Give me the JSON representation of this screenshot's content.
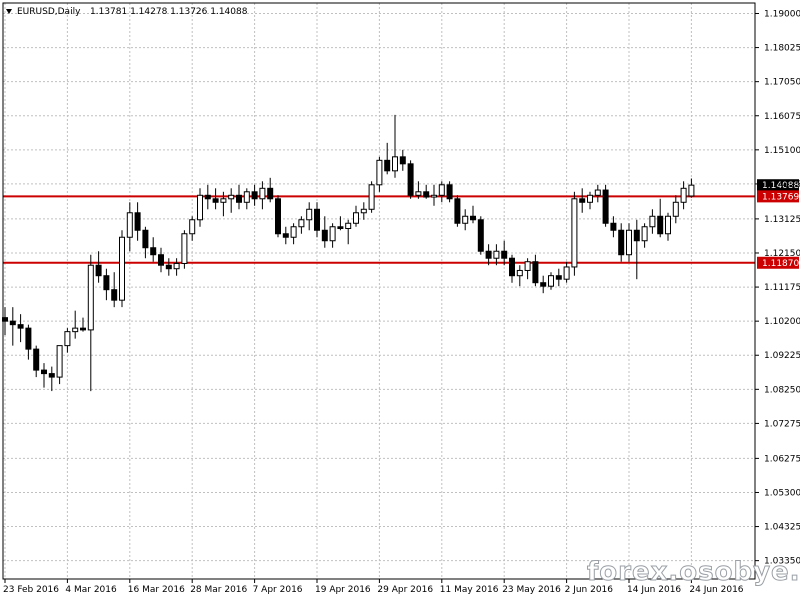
{
  "header": {
    "symbol": "EURUSD,Daily",
    "ohlc": "1.13781 1.14278 1.13726 1.14088"
  },
  "watermark": "forex.osobye.ru",
  "colors": {
    "background": "#ffffff",
    "grid": "#c0c0c0",
    "candle": "#000000",
    "level_line": "#cc0000",
    "current_price_tag": "#000000"
  },
  "chart_data": {
    "type": "candlestick",
    "title": "EURUSD,Daily",
    "grid": true,
    "ylim": [
      1.02825,
      1.193
    ],
    "y_ticks": [
      "1.19000",
      "1.18025",
      "1.17050",
      "1.16075",
      "1.15100",
      "1.14125",
      "1.13125",
      "1.12150",
      "1.11175",
      "1.10200",
      "1.09225",
      "1.08250",
      "1.07275",
      "1.06275",
      "1.05300",
      "1.04325",
      "1.03350"
    ],
    "x_ticks": [
      {
        "index": 0,
        "label": "23 Feb 2016"
      },
      {
        "index": 8,
        "label": "4 Mar 2016"
      },
      {
        "index": 16,
        "label": "16 Mar 2016"
      },
      {
        "index": 24,
        "label": "28 Mar 2016"
      },
      {
        "index": 32,
        "label": "7 Apr 2016"
      },
      {
        "index": 40,
        "label": "19 Apr 2016"
      },
      {
        "index": 48,
        "label": "29 Apr 2016"
      },
      {
        "index": 56,
        "label": "11 May 2016"
      },
      {
        "index": 64,
        "label": "23 May 2016"
      },
      {
        "index": 72,
        "label": "2 Jun 2016"
      },
      {
        "index": 80,
        "label": "14 Jun 2016"
      },
      {
        "index": 88,
        "label": "24 Jun 2016"
      }
    ],
    "levels": [
      {
        "value": 1.13769,
        "label": "1.13769"
      },
      {
        "value": 1.1187,
        "label": "1.11870"
      }
    ],
    "current_price": {
      "value": 1.14088,
      "label": "1.14088"
    },
    "candles": [
      {
        "o": 1.103,
        "h": 1.106,
        "l": 1.098,
        "c": 1.102
      },
      {
        "o": 1.102,
        "h": 1.106,
        "l": 1.095,
        "c": 1.101
      },
      {
        "o": 1.101,
        "h": 1.104,
        "l": 1.096,
        "c": 1.1
      },
      {
        "o": 1.1,
        "h": 1.101,
        "l": 1.091,
        "c": 1.094
      },
      {
        "o": 1.094,
        "h": 1.095,
        "l": 1.086,
        "c": 1.088
      },
      {
        "o": 1.088,
        "h": 1.09,
        "l": 1.083,
        "c": 1.087
      },
      {
        "o": 1.087,
        "h": 1.089,
        "l": 1.082,
        "c": 1.086
      },
      {
        "o": 1.086,
        "h": 1.095,
        "l": 1.084,
        "c": 1.095
      },
      {
        "o": 1.095,
        "h": 1.1,
        "l": 1.093,
        "c": 1.099
      },
      {
        "o": 1.099,
        "h": 1.105,
        "l": 1.097,
        "c": 1.1
      },
      {
        "o": 1.1,
        "h": 1.103,
        "l": 1.099,
        "c": 1.0995
      },
      {
        "o": 1.0995,
        "h": 1.121,
        "l": 1.082,
        "c": 1.118
      },
      {
        "o": 1.118,
        "h": 1.122,
        "l": 1.113,
        "c": 1.115
      },
      {
        "o": 1.115,
        "h": 1.117,
        "l": 1.108,
        "c": 1.111
      },
      {
        "o": 1.111,
        "h": 1.116,
        "l": 1.106,
        "c": 1.108
      },
      {
        "o": 1.108,
        "h": 1.128,
        "l": 1.106,
        "c": 1.126
      },
      {
        "o": 1.126,
        "h": 1.136,
        "l": 1.122,
        "c": 1.133
      },
      {
        "o": 1.133,
        "h": 1.136,
        "l": 1.125,
        "c": 1.128
      },
      {
        "o": 1.128,
        "h": 1.129,
        "l": 1.12,
        "c": 1.123
      },
      {
        "o": 1.123,
        "h": 1.126,
        "l": 1.119,
        "c": 1.121
      },
      {
        "o": 1.121,
        "h": 1.123,
        "l": 1.116,
        "c": 1.118
      },
      {
        "o": 1.118,
        "h": 1.12,
        "l": 1.115,
        "c": 1.117
      },
      {
        "o": 1.117,
        "h": 1.12,
        "l": 1.115,
        "c": 1.1185
      },
      {
        "o": 1.1185,
        "h": 1.128,
        "l": 1.117,
        "c": 1.127
      },
      {
        "o": 1.127,
        "h": 1.132,
        "l": 1.125,
        "c": 1.131
      },
      {
        "o": 1.131,
        "h": 1.14,
        "l": 1.129,
        "c": 1.138
      },
      {
        "o": 1.138,
        "h": 1.141,
        "l": 1.134,
        "c": 1.137
      },
      {
        "o": 1.137,
        "h": 1.14,
        "l": 1.134,
        "c": 1.136
      },
      {
        "o": 1.136,
        "h": 1.139,
        "l": 1.132,
        "c": 1.137
      },
      {
        "o": 1.137,
        "h": 1.14,
        "l": 1.133,
        "c": 1.138
      },
      {
        "o": 1.138,
        "h": 1.141,
        "l": 1.134,
        "c": 1.136
      },
      {
        "o": 1.136,
        "h": 1.14,
        "l": 1.134,
        "c": 1.139
      },
      {
        "o": 1.139,
        "h": 1.141,
        "l": 1.135,
        "c": 1.137
      },
      {
        "o": 1.137,
        "h": 1.142,
        "l": 1.134,
        "c": 1.14
      },
      {
        "o": 1.14,
        "h": 1.143,
        "l": 1.136,
        "c": 1.137
      },
      {
        "o": 1.137,
        "h": 1.138,
        "l": 1.126,
        "c": 1.127
      },
      {
        "o": 1.127,
        "h": 1.129,
        "l": 1.124,
        "c": 1.126
      },
      {
        "o": 1.126,
        "h": 1.13,
        "l": 1.124,
        "c": 1.129
      },
      {
        "o": 1.129,
        "h": 1.132,
        "l": 1.127,
        "c": 1.131
      },
      {
        "o": 1.131,
        "h": 1.136,
        "l": 1.128,
        "c": 1.134
      },
      {
        "o": 1.134,
        "h": 1.136,
        "l": 1.126,
        "c": 1.128
      },
      {
        "o": 1.128,
        "h": 1.132,
        "l": 1.123,
        "c": 1.125
      },
      {
        "o": 1.125,
        "h": 1.13,
        "l": 1.123,
        "c": 1.129
      },
      {
        "o": 1.129,
        "h": 1.132,
        "l": 1.128,
        "c": 1.1285
      },
      {
        "o": 1.1285,
        "h": 1.131,
        "l": 1.124,
        "c": 1.13
      },
      {
        "o": 1.13,
        "h": 1.135,
        "l": 1.129,
        "c": 1.133
      },
      {
        "o": 1.133,
        "h": 1.136,
        "l": 1.131,
        "c": 1.134
      },
      {
        "o": 1.134,
        "h": 1.142,
        "l": 1.133,
        "c": 1.141
      },
      {
        "o": 1.141,
        "h": 1.149,
        "l": 1.139,
        "c": 1.148
      },
      {
        "o": 1.148,
        "h": 1.153,
        "l": 1.144,
        "c": 1.145
      },
      {
        "o": 1.145,
        "h": 1.161,
        "l": 1.143,
        "c": 1.149
      },
      {
        "o": 1.149,
        "h": 1.151,
        "l": 1.145,
        "c": 1.147
      },
      {
        "o": 1.147,
        "h": 1.148,
        "l": 1.137,
        "c": 1.138
      },
      {
        "o": 1.138,
        "h": 1.142,
        "l": 1.137,
        "c": 1.139
      },
      {
        "o": 1.139,
        "h": 1.141,
        "l": 1.137,
        "c": 1.1375
      },
      {
        "o": 1.1375,
        "h": 1.141,
        "l": 1.135,
        "c": 1.138
      },
      {
        "o": 1.138,
        "h": 1.142,
        "l": 1.136,
        "c": 1.141
      },
      {
        "o": 1.141,
        "h": 1.142,
        "l": 1.136,
        "c": 1.137
      },
      {
        "o": 1.137,
        "h": 1.138,
        "l": 1.129,
        "c": 1.13
      },
      {
        "o": 1.13,
        "h": 1.134,
        "l": 1.128,
        "c": 1.132
      },
      {
        "o": 1.132,
        "h": 1.135,
        "l": 1.13,
        "c": 1.131
      },
      {
        "o": 1.131,
        "h": 1.132,
        "l": 1.121,
        "c": 1.122
      },
      {
        "o": 1.122,
        "h": 1.124,
        "l": 1.118,
        "c": 1.12
      },
      {
        "o": 1.12,
        "h": 1.124,
        "l": 1.118,
        "c": 1.122
      },
      {
        "o": 1.122,
        "h": 1.125,
        "l": 1.118,
        "c": 1.12
      },
      {
        "o": 1.12,
        "h": 1.121,
        "l": 1.113,
        "c": 1.115
      },
      {
        "o": 1.115,
        "h": 1.118,
        "l": 1.112,
        "c": 1.1165
      },
      {
        "o": 1.1165,
        "h": 1.12,
        "l": 1.114,
        "c": 1.119
      },
      {
        "o": 1.119,
        "h": 1.121,
        "l": 1.112,
        "c": 1.113
      },
      {
        "o": 1.113,
        "h": 1.115,
        "l": 1.11,
        "c": 1.112
      },
      {
        "o": 1.112,
        "h": 1.116,
        "l": 1.111,
        "c": 1.115
      },
      {
        "o": 1.115,
        "h": 1.117,
        "l": 1.112,
        "c": 1.114
      },
      {
        "o": 1.114,
        "h": 1.119,
        "l": 1.113,
        "c": 1.1175
      },
      {
        "o": 1.1175,
        "h": 1.139,
        "l": 1.115,
        "c": 1.137
      },
      {
        "o": 1.137,
        "h": 1.14,
        "l": 1.133,
        "c": 1.136
      },
      {
        "o": 1.136,
        "h": 1.139,
        "l": 1.134,
        "c": 1.138
      },
      {
        "o": 1.138,
        "h": 1.141,
        "l": 1.136,
        "c": 1.1395
      },
      {
        "o": 1.1395,
        "h": 1.141,
        "l": 1.129,
        "c": 1.13
      },
      {
        "o": 1.13,
        "h": 1.132,
        "l": 1.126,
        "c": 1.128
      },
      {
        "o": 1.128,
        "h": 1.13,
        "l": 1.119,
        "c": 1.121
      },
      {
        "o": 1.121,
        "h": 1.13,
        "l": 1.119,
        "c": 1.128
      },
      {
        "o": 1.128,
        "h": 1.131,
        "l": 1.114,
        "c": 1.125
      },
      {
        "o": 1.125,
        "h": 1.13,
        "l": 1.123,
        "c": 1.129
      },
      {
        "o": 1.129,
        "h": 1.134,
        "l": 1.127,
        "c": 1.132
      },
      {
        "o": 1.132,
        "h": 1.137,
        "l": 1.126,
        "c": 1.127
      },
      {
        "o": 1.127,
        "h": 1.133,
        "l": 1.125,
        "c": 1.132
      },
      {
        "o": 1.132,
        "h": 1.138,
        "l": 1.13,
        "c": 1.136
      },
      {
        "o": 1.136,
        "h": 1.142,
        "l": 1.134,
        "c": 1.14
      },
      {
        "o": 1.1378,
        "h": 1.1428,
        "l": 1.1373,
        "c": 1.1409
      }
    ]
  }
}
